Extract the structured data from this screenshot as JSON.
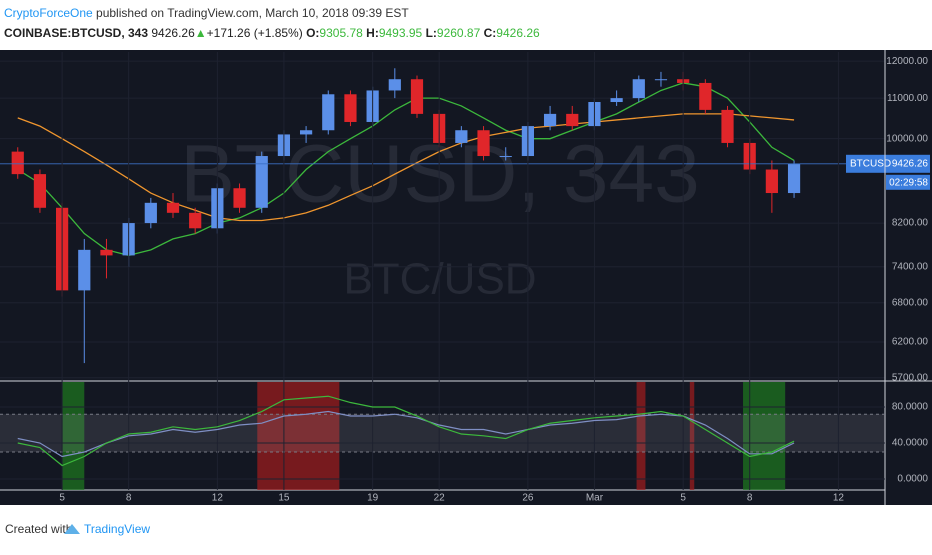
{
  "header": {
    "author": "CryptoForceOne",
    "published": " published on TradingView.com, March 10, 2018 09:39 EST",
    "symbol": "COINBASE:BTCUSD, 343",
    "last": "9426.26",
    "arrow": "▲",
    "change": "+171.26 (+1.85%)",
    "o_label": "O:",
    "open": "9305.78",
    "h_label": "H:",
    "high": "9493.95",
    "l_label": "L:",
    "low": "9260.87",
    "c_label": "C:",
    "close": "9426.26"
  },
  "watermark": {
    "line1": "BTCUSD, 343",
    "line2": "BTC/USD"
  },
  "price_label": {
    "symbol": "BTCUSD",
    "price": "9426.26",
    "countdown": "02:29:58"
  },
  "footer": {
    "created": "Created with",
    "brand": "TradingView"
  },
  "chart_data": [
    {
      "type": "candlestick",
      "log_scale": true,
      "grid": true,
      "up_color": "#5b8fe8",
      "down_color": "#e0262a",
      "xlim": [
        2.2,
        42.1
      ],
      "ylim": [
        5670,
        12260
      ],
      "yticks": [
        {
          "value": 5700,
          "label": "5700.00"
        },
        {
          "value": 6200,
          "label": "6200.00"
        },
        {
          "value": 6800,
          "label": "6800.00"
        },
        {
          "value": 7400,
          "label": "7400.00"
        },
        {
          "value": 8200,
          "label": "8200.00"
        },
        {
          "value": 10000,
          "label": "10000.00"
        },
        {
          "value": 11000,
          "label": "11000.00"
        },
        {
          "value": 12000,
          "label": "12000.00"
        }
      ],
      "x": [
        3,
        4,
        5,
        6,
        7,
        8,
        9,
        10,
        11,
        12,
        13,
        14,
        15,
        16,
        17,
        18,
        19,
        20,
        21,
        22,
        23,
        24,
        25,
        26,
        27,
        28,
        29,
        30,
        31,
        32,
        33,
        34,
        35,
        36,
        37,
        38
      ],
      "open": [
        9700,
        9200,
        8500,
        7000,
        7700,
        7600,
        8200,
        8600,
        8400,
        8100,
        8900,
        8500,
        9600,
        10100,
        10200,
        11100,
        10400,
        11200,
        11500,
        10600,
        9900,
        10200,
        9600,
        9600,
        10300,
        10600,
        10300,
        10900,
        11000,
        11500,
        11500,
        11400,
        10700,
        9900,
        9300,
        8800
      ],
      "high": [
        9800,
        9300,
        8600,
        7900,
        7900,
        8300,
        8700,
        8800,
        8500,
        9000,
        9000,
        9700,
        10200,
        10300,
        11200,
        11200,
        11300,
        11800,
        11600,
        10700,
        10300,
        10300,
        9800,
        10400,
        10800,
        10800,
        11000,
        11200,
        11600,
        11700,
        11700,
        11500,
        10800,
        10000,
        9500,
        9500
      ],
      "low": [
        9100,
        8400,
        6900,
        5900,
        7200,
        7400,
        8100,
        8300,
        8000,
        8000,
        8400,
        8400,
        9500,
        9900,
        10100,
        10300,
        10300,
        11000,
        10500,
        9800,
        9800,
        9500,
        9500,
        9500,
        10200,
        10200,
        10200,
        10800,
        10900,
        11300,
        11200,
        10600,
        9800,
        9200,
        8400,
        8700
      ],
      "close": [
        9200,
        8500,
        7000,
        7700,
        7600,
        8200,
        8600,
        8400,
        8100,
        8900,
        8500,
        9600,
        10100,
        10200,
        11100,
        10400,
        11200,
        11500,
        10600,
        9900,
        10200,
        9600,
        9600,
        10300,
        10600,
        10300,
        10900,
        11000,
        11500,
        11500,
        11400,
        10700,
        9900,
        9300,
        8800,
        9426.26
      ],
      "overlays": [
        {
          "color": "#3cb83c",
          "values": [
            9300,
            9000,
            8500,
            8000,
            7700,
            7600,
            7700,
            7900,
            8000,
            8200,
            8300,
            8500,
            8800,
            9300,
            9700,
            10000,
            10300,
            10700,
            11000,
            11000,
            10800,
            10500,
            10200,
            10000,
            10000,
            10200,
            10400,
            10600,
            10900,
            11200,
            11400,
            11300,
            11000,
            10400,
            9800,
            9500
          ]
        },
        {
          "color": "#f0962e",
          "values": [
            10500,
            10300,
            10000,
            9700,
            9400,
            9100,
            8800,
            8600,
            8450,
            8300,
            8250,
            8250,
            8300,
            8400,
            8550,
            8750,
            8950,
            9200,
            9450,
            9700,
            9900,
            10050,
            10150,
            10250,
            10300,
            10350,
            10400,
            10450,
            10500,
            10550,
            10600,
            10600,
            10600,
            10550,
            10500,
            10450
          ]
        }
      ]
    },
    {
      "type": "line",
      "grid": true,
      "xlim": [
        2.2,
        42.1
      ],
      "xticks": [
        5,
        8,
        12,
        15,
        19,
        22,
        26,
        {
          "value": 29,
          "label": "Mar"
        },
        {
          "value": 33,
          "label": "5"
        },
        {
          "value": 36,
          "label": "8"
        },
        {
          "value": 40,
          "label": "12"
        }
      ],
      "ylim": [
        -12.2,
        107.8
      ],
      "yticks": [
        {
          "value": 0,
          "label": "0.0000"
        },
        {
          "value": 40,
          "label": "40.0000"
        },
        {
          "value": 80,
          "label": "80.0000"
        }
      ],
      "band": [
        30,
        72
      ],
      "zones": [
        {
          "start": 5,
          "end": 6,
          "color": "#1e7a1e"
        },
        {
          "start": 13.8,
          "end": 17.5,
          "color": "#a31c1c"
        },
        {
          "start": 30.9,
          "end": 31.3,
          "color": "#a31c1c"
        },
        {
          "start": 33.3,
          "end": 33.5,
          "color": "#a31c1c"
        },
        {
          "start": 35.7,
          "end": 37.6,
          "color": "#1e7a1e"
        }
      ],
      "x": [
        3,
        4,
        5,
        6,
        7,
        8,
        9,
        10,
        11,
        12,
        13,
        14,
        15,
        16,
        17,
        18,
        19,
        20,
        21,
        22,
        23,
        24,
        25,
        26,
        27,
        28,
        29,
        30,
        31,
        32,
        33,
        34,
        35,
        36,
        37,
        38
      ],
      "series": [
        {
          "color": "#7f8fc4",
          "values": [
            45,
            40,
            25,
            30,
            40,
            48,
            50,
            55,
            52,
            55,
            60,
            62,
            70,
            72,
            75,
            70,
            70,
            72,
            68,
            60,
            55,
            55,
            50,
            55,
            60,
            62,
            65,
            66,
            70,
            72,
            70,
            60,
            45,
            28,
            28,
            40
          ]
        },
        {
          "color": "#3cb83c",
          "values": [
            40,
            35,
            15,
            25,
            40,
            50,
            52,
            58,
            55,
            58,
            65,
            75,
            88,
            90,
            92,
            85,
            80,
            80,
            70,
            58,
            50,
            48,
            45,
            55,
            62,
            65,
            68,
            70,
            72,
            75,
            70,
            55,
            40,
            25,
            30,
            42
          ]
        }
      ]
    }
  ]
}
